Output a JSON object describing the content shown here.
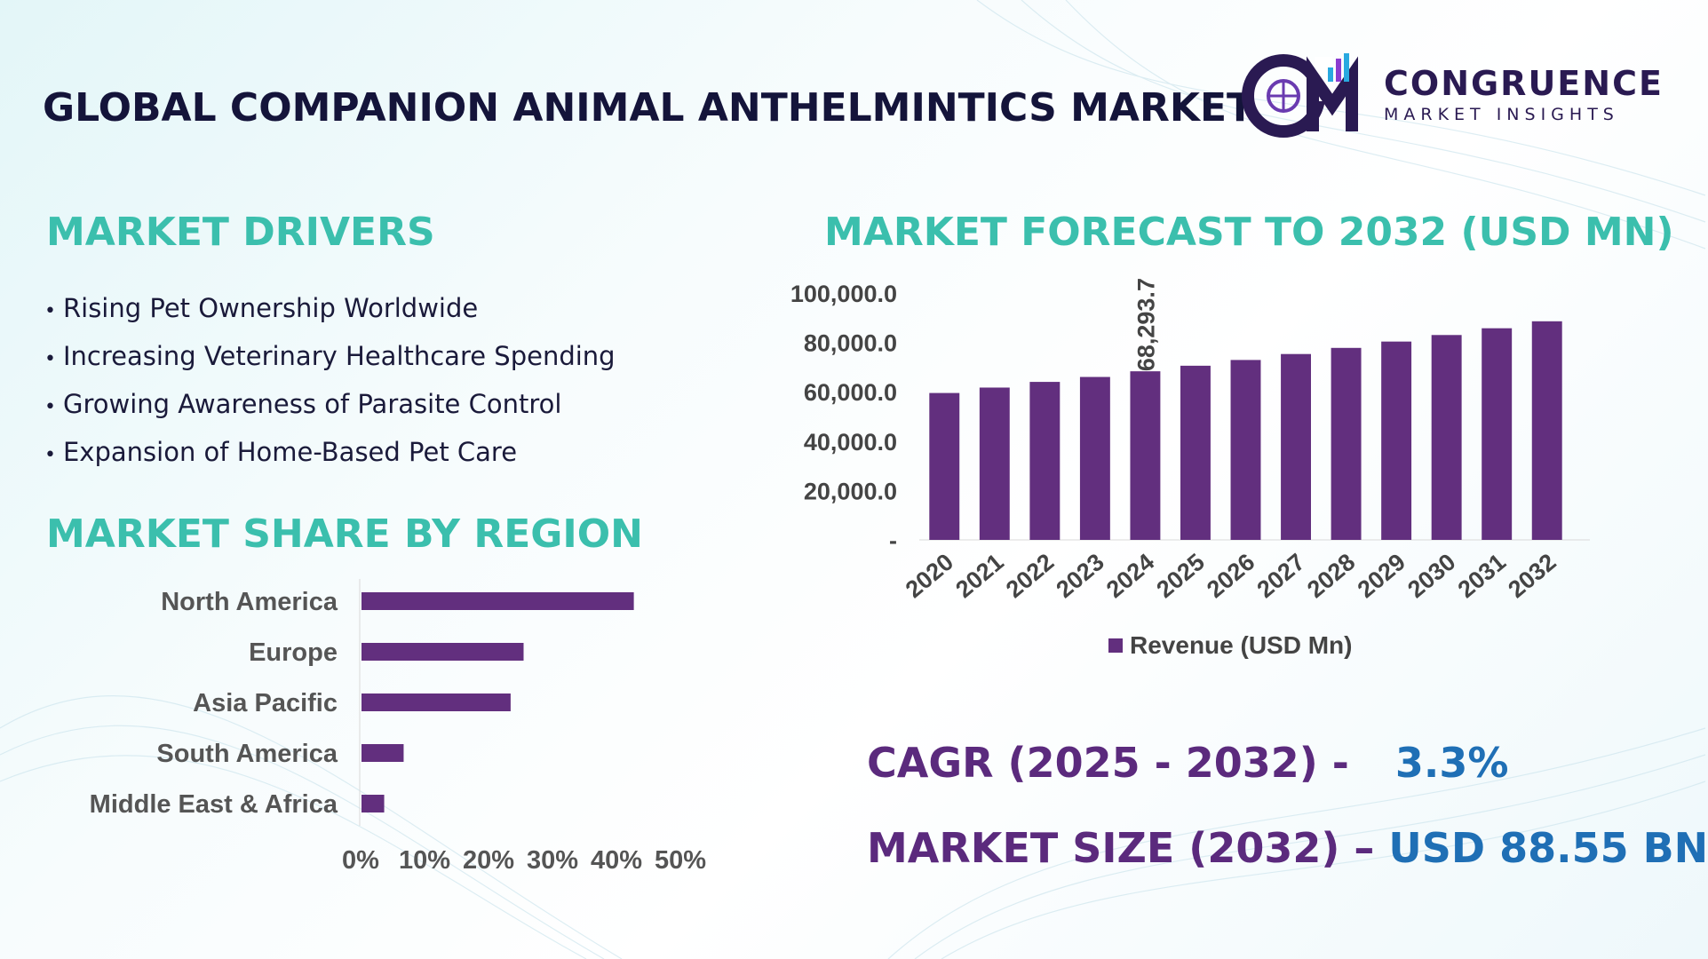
{
  "header": {
    "title": "GLOBAL COMPANION ANIMAL ANTHELMINTICS MARKET",
    "logo_name": "CONGRUENCE",
    "logo_tagline": "MARKET INSIGHTS"
  },
  "drivers": {
    "heading": "MARKET DRIVERS",
    "items": [
      "Rising Pet Ownership Worldwide",
      "Increasing Veterinary Healthcare Spending",
      "Growing Awareness of Parasite Control",
      "Expansion of Home-Based Pet Care"
    ]
  },
  "forecast": {
    "heading": "MARKET FORECAST TO 2032 (USD MN)"
  },
  "region": {
    "heading": "MARKET SHARE BY REGION"
  },
  "stats": {
    "cagr_label": "CAGR (2025 - 2032) -",
    "cagr_value": "3.3%",
    "size_label": "MARKET SIZE (2032) –",
    "size_value": "USD 88.55 BN"
  },
  "colors": {
    "bar": "#622f7e",
    "heading": "#3bbfad",
    "stat_label": "#5b2a7d",
    "stat_value": "#1f6fb5",
    "title": "#14143a"
  },
  "chart_data": [
    {
      "type": "bar",
      "title": "MARKET FORECAST TO 2032 (USD MN)",
      "categories": [
        "2020",
        "2021",
        "2022",
        "2023",
        "2024",
        "2025",
        "2026",
        "2027",
        "2028",
        "2029",
        "2030",
        "2031",
        "2032"
      ],
      "series": [
        {
          "name": "Revenue (USD Mn)",
          "values": [
            59500,
            61700,
            64000,
            66000,
            68293.7,
            70550,
            72880,
            75290,
            77770,
            80340,
            82990,
            85730,
            88550
          ]
        }
      ],
      "data_labels": [
        {
          "index": 4,
          "text": "68,293.7"
        }
      ],
      "y_ticks": [
        {
          "value": 0,
          "label": "-"
        },
        {
          "value": 20000,
          "label": "20,000.0"
        },
        {
          "value": 40000,
          "label": "40,000.0"
        },
        {
          "value": 60000,
          "label": "60,000.0"
        },
        {
          "value": 80000,
          "label": "80,000.0"
        },
        {
          "value": 100000,
          "label": "100,000.0"
        }
      ],
      "ylim": [
        0,
        100000
      ],
      "legend": "bottom",
      "xlabel": "",
      "ylabel": ""
    },
    {
      "type": "bar",
      "orientation": "horizontal",
      "title": "MARKET SHARE BY REGION",
      "categories": [
        "North America",
        "Europe",
        "Asia Pacific",
        "South America",
        "Middle East & Africa"
      ],
      "values": [
        42,
        25,
        23,
        6.5,
        3.5
      ],
      "unit": "%",
      "x_ticks": [
        "0%",
        "10%",
        "20%",
        "30%",
        "40%",
        "50%"
      ],
      "xlim": [
        0,
        50
      ]
    }
  ]
}
